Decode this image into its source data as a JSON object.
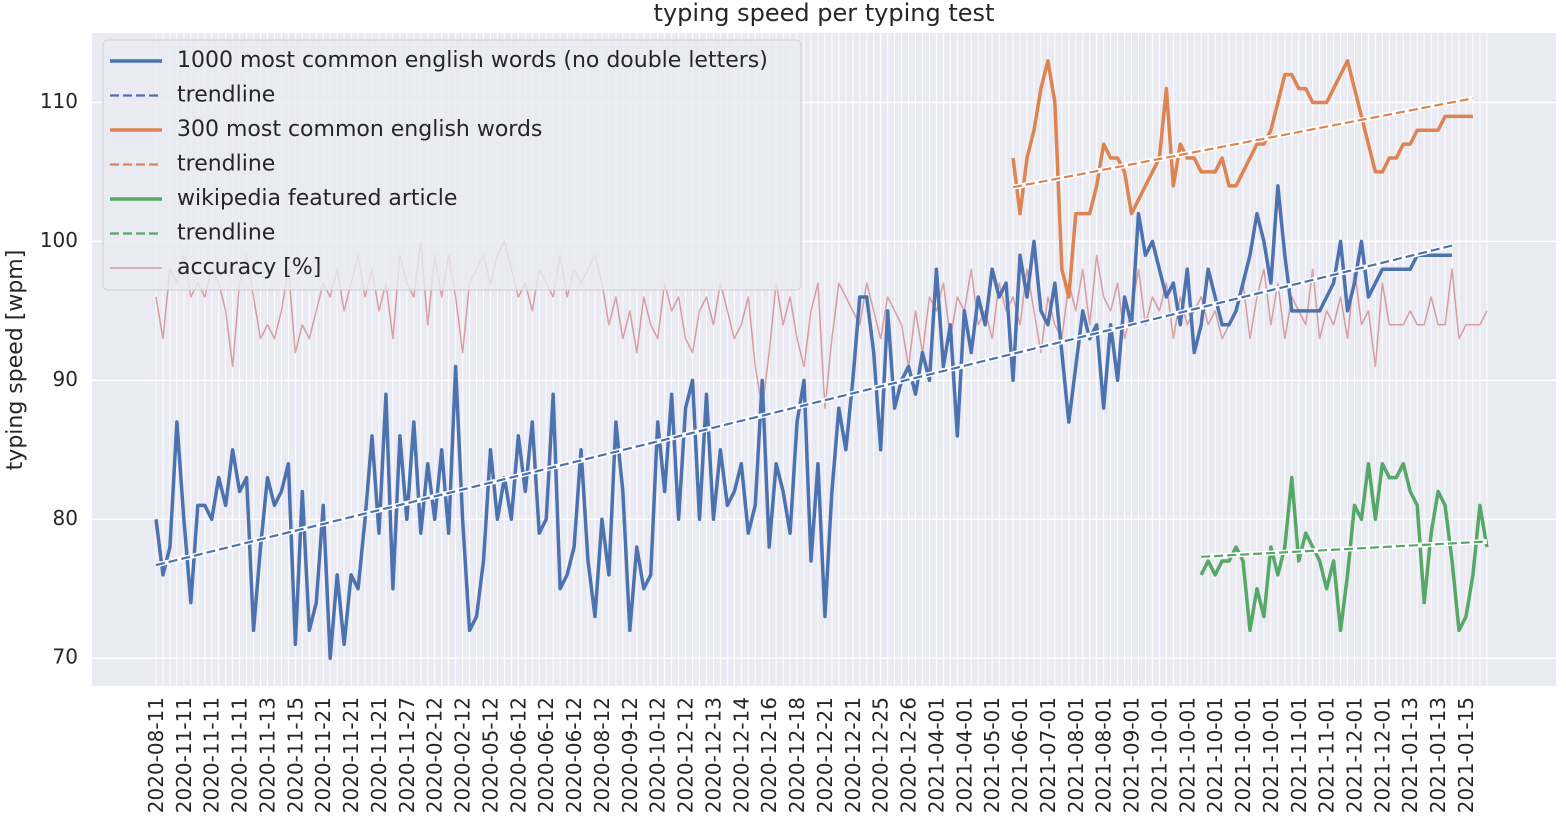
{
  "chart_data": {
    "type": "line",
    "title": "typing speed per typing test",
    "ylabel": "typing speed [wpm]",
    "ylim": [
      68,
      115
    ],
    "yticks": [
      70,
      80,
      90,
      100,
      110
    ],
    "grid": true,
    "legend": "upper left",
    "background": "#eaeaf2",
    "categories": [
      "2020-08-11",
      null,
      null,
      null,
      "2020-11-11",
      null,
      null,
      null,
      "2020-11-11",
      null,
      null,
      null,
      "2020-11-11",
      null,
      null,
      null,
      "2020-11-13",
      null,
      null,
      null,
      "2020-11-15",
      null,
      null,
      null,
      "2020-11-21",
      null,
      null,
      null,
      "2020-11-21",
      null,
      null,
      null,
      "2020-11-21",
      null,
      null,
      null,
      "2020-11-27",
      null,
      null,
      null,
      "2020-02-12",
      null,
      null,
      null,
      "2020-02-12",
      null,
      null,
      null,
      "2020-05-12",
      null,
      null,
      null,
      "2020-06-12",
      null,
      null,
      null,
      "2020-06-12",
      null,
      null,
      null,
      "2020-06-12",
      null,
      null,
      null,
      "2020-08-12",
      null,
      null,
      null,
      "2020-09-12",
      null,
      null,
      null,
      "2020-10-12",
      null,
      null,
      null,
      "2020-12-12",
      null,
      null,
      null,
      "2020-12-13",
      null,
      null,
      null,
      "2020-12-14",
      null,
      null,
      null,
      "2020-12-16",
      null,
      null,
      null,
      "2020-12-18",
      null,
      null,
      null,
      "2020-12-21",
      null,
      null,
      null,
      "2020-12-21",
      null,
      null,
      null,
      "2020-12-25",
      null,
      null,
      null,
      "2020-12-26",
      null,
      null,
      null,
      "2021-04-01",
      null,
      null,
      null,
      "2021-04-01",
      null,
      null,
      null,
      "2021-05-01",
      null,
      null,
      null,
      "2021-06-01",
      null,
      null,
      null,
      "2021-07-01",
      null,
      null,
      null,
      "2021-08-01",
      null,
      null,
      null,
      "2021-08-01",
      null,
      null,
      null,
      "2021-09-01",
      null,
      null,
      null,
      "2021-10-01",
      null,
      null,
      null,
      "2021-10-01",
      null,
      null,
      null,
      "2021-10-01",
      null,
      null,
      null,
      "2021-10-01",
      null,
      null,
      null,
      "2021-10-01",
      null,
      null,
      null,
      "2021-11-01",
      null,
      null,
      null,
      "2021-11-01",
      null,
      null,
      null,
      "2021-12-01",
      null,
      null,
      null,
      "2021-12-01",
      null,
      null,
      null,
      "2021-01-13",
      null,
      null,
      null,
      "2021-01-13",
      null,
      null,
      null,
      "2021-01-15",
      null,
      null,
      null
    ],
    "series": [
      {
        "name": "1000 most common english words (no double letters)",
        "color": "#4c72b0",
        "width": 3.5,
        "values": [
          80,
          76,
          78,
          87,
          80,
          74,
          81,
          81,
          80,
          83,
          81,
          85,
          82,
          83,
          72,
          78,
          83,
          81,
          82,
          84,
          71,
          82,
          72,
          74,
          81,
          70,
          76,
          71,
          76,
          75,
          80,
          86,
          79,
          89,
          75,
          86,
          80,
          87,
          79,
          84,
          80,
          85,
          79,
          91,
          80,
          72,
          73,
          77,
          85,
          80,
          83,
          80,
          86,
          82,
          87,
          79,
          80,
          89,
          75,
          76,
          78,
          85,
          77,
          73,
          80,
          76,
          87,
          82,
          72,
          78,
          75,
          76,
          87,
          82,
          89,
          80,
          88,
          90,
          80,
          89,
          80,
          85,
          81,
          82,
          84,
          79,
          81,
          90,
          78,
          84,
          82,
          79,
          87,
          90,
          77,
          84,
          73,
          82,
          88,
          85,
          90,
          96,
          96,
          92,
          85,
          95,
          88,
          90,
          91,
          89,
          92,
          90,
          98,
          91,
          94,
          86,
          95,
          92,
          96,
          94,
          98,
          96,
          97,
          90,
          99,
          96,
          100,
          95,
          94,
          97,
          92,
          87,
          91,
          95,
          93,
          94,
          88,
          94,
          90,
          96,
          94,
          102,
          99,
          100,
          98,
          96,
          97,
          94,
          98,
          92,
          94,
          98,
          96,
          94,
          94,
          95,
          97,
          99,
          102,
          100,
          97,
          104,
          99,
          95,
          95,
          95,
          95,
          95,
          96,
          97,
          100,
          95,
          97,
          100,
          96,
          97,
          98,
          98,
          98,
          98,
          98,
          99,
          99,
          99,
          99,
          99,
          99,
          null,
          null,
          null,
          null,
          null
        ]
      },
      {
        "name": "trendline",
        "color": "#4c72b0",
        "style": "dashed",
        "x": [
          0,
          186
        ],
        "values": [
          76.7,
          99.7
        ]
      },
      {
        "name": "300 most common english words",
        "color": "#dd8452",
        "width": 3.5,
        "values": [
          null,
          null,
          null,
          null,
          null,
          null,
          null,
          null,
          null,
          null,
          null,
          null,
          null,
          null,
          null,
          null,
          null,
          null,
          null,
          null,
          null,
          null,
          null,
          null,
          null,
          null,
          null,
          null,
          null,
          null,
          null,
          null,
          null,
          null,
          null,
          null,
          null,
          null,
          null,
          null,
          null,
          null,
          null,
          null,
          null,
          null,
          null,
          null,
          null,
          null,
          null,
          null,
          null,
          null,
          null,
          null,
          null,
          null,
          null,
          null,
          null,
          null,
          null,
          null,
          null,
          null,
          null,
          null,
          null,
          null,
          null,
          null,
          null,
          null,
          null,
          null,
          null,
          null,
          null,
          null,
          null,
          null,
          null,
          null,
          null,
          null,
          null,
          null,
          null,
          null,
          null,
          null,
          null,
          null,
          null,
          null,
          null,
          null,
          null,
          null,
          null,
          null,
          null,
          null,
          null,
          null,
          null,
          null,
          null,
          null,
          null,
          null,
          null,
          null,
          null,
          null,
          null,
          null,
          null,
          null,
          null,
          null,
          null,
          106,
          102,
          106,
          108,
          111,
          113,
          110,
          98,
          96,
          102,
          102,
          102,
          104,
          107,
          106,
          106,
          105,
          102,
          103,
          104,
          105,
          106,
          111,
          104,
          107,
          106,
          106,
          105,
          105,
          105,
          106,
          104,
          104,
          105,
          106,
          107,
          107,
          108,
          110,
          112,
          112,
          111,
          111,
          110,
          110,
          110,
          111,
          112,
          113,
          111,
          109,
          107,
          105,
          105,
          106,
          106,
          107,
          107,
          108,
          108,
          108,
          108,
          109,
          109,
          109,
          109,
          109,
          null,
          null
        ]
      },
      {
        "name": "trendline",
        "color": "#dd8452",
        "style": "dashed",
        "x": [
          123,
          189
        ],
        "values": [
          103.9,
          110.3
        ]
      },
      {
        "name": "wikipedia featured article",
        "color": "#55a868",
        "width": 3.5,
        "values": [
          null,
          null,
          null,
          null,
          null,
          null,
          null,
          null,
          null,
          null,
          null,
          null,
          null,
          null,
          null,
          null,
          null,
          null,
          null,
          null,
          null,
          null,
          null,
          null,
          null,
          null,
          null,
          null,
          null,
          null,
          null,
          null,
          null,
          null,
          null,
          null,
          null,
          null,
          null,
          null,
          null,
          null,
          null,
          null,
          null,
          null,
          null,
          null,
          null,
          null,
          null,
          null,
          null,
          null,
          null,
          null,
          null,
          null,
          null,
          null,
          null,
          null,
          null,
          null,
          null,
          null,
          null,
          null,
          null,
          null,
          null,
          null,
          null,
          null,
          null,
          null,
          null,
          null,
          null,
          null,
          null,
          null,
          null,
          null,
          null,
          null,
          null,
          null,
          null,
          null,
          null,
          null,
          null,
          null,
          null,
          null,
          null,
          null,
          null,
          null,
          null,
          null,
          null,
          null,
          null,
          null,
          null,
          null,
          null,
          null,
          null,
          null,
          null,
          null,
          null,
          null,
          null,
          null,
          null,
          null,
          null,
          null,
          null,
          null,
          null,
          null,
          null,
          null,
          null,
          null,
          null,
          null,
          null,
          null,
          null,
          null,
          null,
          null,
          null,
          null,
          null,
          null,
          null,
          null,
          null,
          null,
          null,
          null,
          null,
          null,
          76,
          77,
          76,
          77,
          77,
          78,
          77,
          72,
          75,
          73,
          78,
          76,
          78,
          83,
          77,
          79,
          78,
          77,
          75,
          77,
          72,
          76,
          81,
          80,
          84,
          80,
          84,
          83,
          83,
          84,
          82,
          81,
          74,
          79,
          82,
          81,
          77,
          72,
          73,
          76,
          81,
          78
        ]
      },
      {
        "name": "trendline",
        "color": "#55a868",
        "style": "dashed",
        "x": [
          150,
          191
        ],
        "values": [
          77.3,
          78.4
        ]
      },
      {
        "name": "accuracy [%]",
        "color": "#c44e52",
        "alpha": 0.5,
        "width": 1.5,
        "values": [
          96,
          93,
          98,
          97,
          99,
          96,
          97,
          96,
          98,
          97,
          95,
          91,
          97,
          99,
          96,
          93,
          94,
          93,
          95,
          98,
          92,
          94,
          93,
          95,
          97,
          96,
          98,
          95,
          97,
          99,
          96,
          98,
          95,
          97,
          93,
          99,
          97,
          96,
          100,
          94,
          99,
          96,
          99,
          96,
          92,
          97,
          98,
          99,
          97,
          99,
          100,
          98,
          96,
          97,
          95,
          98,
          97,
          96,
          99,
          96,
          98,
          97,
          98,
          99,
          97,
          94,
          96,
          93,
          95,
          92,
          96,
          94,
          93,
          97,
          95,
          96,
          93,
          92,
          95,
          96,
          94,
          97,
          95,
          93,
          94,
          96,
          91,
          88,
          92,
          97,
          94,
          96,
          93,
          91,
          95,
          97,
          88,
          93,
          97,
          96,
          95,
          94,
          97,
          95,
          93,
          96,
          95,
          94,
          91,
          95,
          92,
          96,
          95,
          97,
          93,
          96,
          95,
          98,
          94,
          95,
          93,
          97,
          95,
          96,
          94,
          98,
          95,
          92,
          96,
          94,
          93,
          97,
          95,
          98,
          94,
          99,
          96,
          95,
          97,
          93,
          95,
          98,
          94,
          96,
          95,
          97,
          93,
          96,
          94,
          95,
          96,
          94,
          95,
          93,
          94,
          95,
          97,
          93,
          96,
          98,
          94,
          97,
          93,
          96,
          95,
          94,
          98,
          93,
          95,
          94,
          96,
          93,
          98,
          94,
          95,
          91,
          97,
          94,
          94,
          94,
          95,
          94,
          94,
          96,
          94,
          94,
          98,
          93,
          94,
          94,
          94,
          95
        ]
      }
    ]
  }
}
